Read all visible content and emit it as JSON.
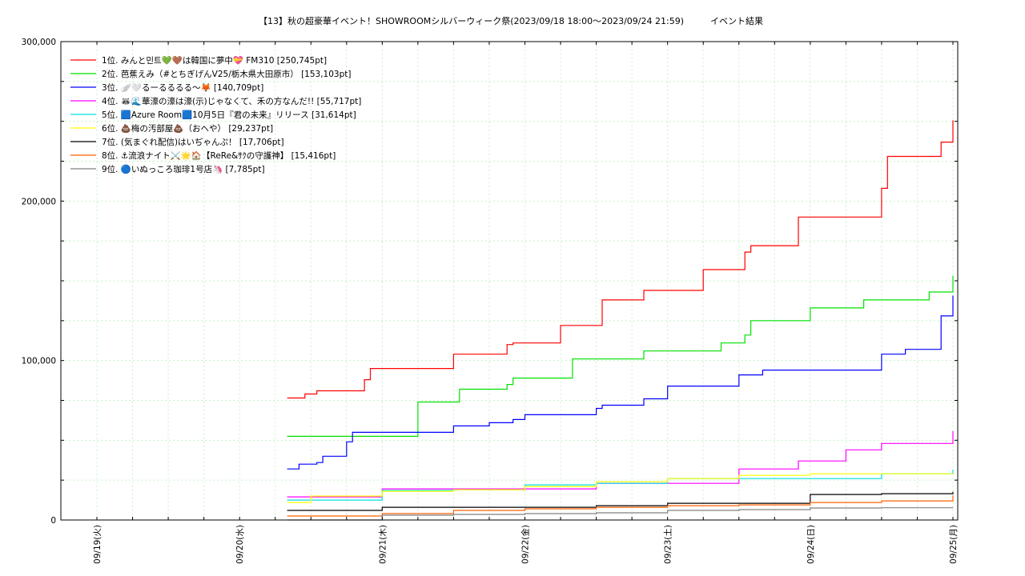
{
  "chart_data": {
    "type": "line",
    "title": "【13】秋の超豪華イベント！SHOWROOMシルバーウィーク祭(2023/09/18 18:00〜2023/09/24 21:59)　　　イベント結果",
    "xlabel": "",
    "ylabel": "",
    "ylim": [
      0,
      300000
    ],
    "y_ticks": [
      0,
      100000,
      200000,
      300000
    ],
    "y_tick_labels": [
      "0",
      "100,000",
      "200,000",
      "300,000"
    ],
    "xlim": [
      "2023-09-19 00:00",
      "2023-09-25 00:00"
    ],
    "x_ticks": [
      "2023-09-19",
      "2023-09-20",
      "2023-09-21",
      "2023-09-22",
      "2023-09-23",
      "2023-09-24",
      "2023-09-25"
    ],
    "x_tick_labels": [
      "09/19(火)",
      "09/20(水)",
      "09/21(木)",
      "09/22(金)",
      "09/23(土)",
      "09/24(日)",
      "09/25(月)"
    ],
    "grid": true,
    "legend_position": "top-left",
    "series": [
      {
        "name": "1位. みんと민트💚🤎は韓国に夢中💝 FM310 [250,745pt]",
        "color": "#ff0000",
        "x": [
          "2023-09-20 08:00",
          "2023-09-20 10:00",
          "2023-09-20 11:00",
          "2023-09-20 13:00",
          "2023-09-20 21:00",
          "2023-09-20 22:00",
          "2023-09-21 12:00",
          "2023-09-21 13:00",
          "2023-09-21 21:00",
          "2023-09-21 22:00",
          "2023-09-22 06:00",
          "2023-09-22 12:00",
          "2023-09-22 13:00",
          "2023-09-22 20:00",
          "2023-09-22 21:00",
          "2023-09-23 06:00",
          "2023-09-23 13:00",
          "2023-09-23 14:00",
          "2023-09-23 22:00",
          "2023-09-23 23:00",
          "2023-09-24 12:00",
          "2023-09-24 13:00",
          "2023-09-24 14:00",
          "2023-09-24 22:00",
          "2023-09-25 00:00"
        ],
        "y": [
          76500,
          76500,
          79000,
          81000,
          88000,
          95000,
          104000,
          104000,
          110000,
          111000,
          122000,
          122000,
          138000,
          144000,
          144000,
          157000,
          168000,
          172000,
          190000,
          190000,
          208000,
          228000,
          228000,
          237000,
          250745
        ]
      },
      {
        "name": "2位. 芭蕉えみ（#とちぎげんV25/栃木県大田原市） [153,103pt]",
        "color": "#00e000",
        "x": [
          "2023-09-20 08:00",
          "2023-09-20 20:00",
          "2023-09-21 00:00",
          "2023-09-21 06:00",
          "2023-09-21 08:00",
          "2023-09-21 12:00",
          "2023-09-21 13:00",
          "2023-09-21 21:00",
          "2023-09-21 22:00",
          "2023-09-22 07:00",
          "2023-09-22 08:00",
          "2023-09-22 18:00",
          "2023-09-22 20:00",
          "2023-09-23 09:00",
          "2023-09-23 10:00",
          "2023-09-23 13:00",
          "2023-09-23 14:00",
          "2023-09-23 22:00",
          "2023-09-24 00:00",
          "2023-09-24 08:00",
          "2023-09-24 09:00",
          "2023-09-24 20:00",
          "2023-09-24 21:00",
          "2023-09-25 00:00"
        ],
        "y": [
          52500,
          52500,
          52500,
          74000,
          74000,
          74000,
          82000,
          85000,
          89000,
          89000,
          101000,
          101000,
          106000,
          111000,
          111000,
          116000,
          125000,
          125000,
          133000,
          133000,
          138000,
          143000,
          143000,
          153103
        ]
      },
      {
        "name": "3位. 🪽🤍るーるるるる〜🦊 [140,709pt]",
        "color": "#0000ff",
        "x": [
          "2023-09-20 08:00",
          "2023-09-20 10:00",
          "2023-09-20 13:00",
          "2023-09-20 14:00",
          "2023-09-20 18:00",
          "2023-09-20 19:00",
          "2023-09-21 12:00",
          "2023-09-21 13:00",
          "2023-09-21 18:00",
          "2023-09-21 22:00",
          "2023-09-22 00:00",
          "2023-09-22 12:00",
          "2023-09-22 13:00",
          "2023-09-22 16:00",
          "2023-09-22 20:00",
          "2023-09-23 00:00",
          "2023-09-23 12:00",
          "2023-09-23 13:00",
          "2023-09-23 16:00",
          "2023-09-24 00:00",
          "2023-09-24 12:00",
          "2023-09-24 16:00",
          "2023-09-24 20:00",
          "2023-09-24 22:00",
          "2023-09-25 00:00"
        ],
        "y": [
          32000,
          35000,
          36000,
          40000,
          49000,
          55000,
          59000,
          59000,
          61000,
          63000,
          66000,
          70000,
          72000,
          72000,
          76000,
          84000,
          91000,
          91000,
          94000,
          94000,
          104000,
          107000,
          107000,
          128000,
          140709
        ]
      },
      {
        "name": "4位. 🦝🌊華濠の濠は濠(示)じゃなくて、禾の方なんだ!! [55,717pt]",
        "color": "#ff00ff",
        "x": [
          "2023-09-20 08:00",
          "2023-09-20 12:00",
          "2023-09-21 00:00",
          "2023-09-21 12:00",
          "2023-09-22 00:00",
          "2023-09-22 12:00",
          "2023-09-23 00:00",
          "2023-09-23 12:00",
          "2023-09-23 18:00",
          "2023-09-23 22:00",
          "2023-09-24 00:00",
          "2023-09-24 06:00",
          "2023-09-24 12:00",
          "2023-09-24 22:00",
          "2023-09-25 00:00"
        ],
        "y": [
          14500,
          14500,
          19500,
          19500,
          19500,
          23000,
          23000,
          32000,
          32000,
          37000,
          37000,
          44000,
          48000,
          48000,
          55717
        ]
      },
      {
        "name": "5位. 🟦Azure Room🟦10月5日『君の未来』リリース [31,614pt]",
        "color": "#00e0e0",
        "x": [
          "2023-09-20 08:00",
          "2023-09-20 12:00",
          "2023-09-21 00:00",
          "2023-09-21 12:00",
          "2023-09-22 00:00",
          "2023-09-22 12:00",
          "2023-09-23 00:00",
          "2023-09-23 12:00",
          "2023-09-24 00:00",
          "2023-09-24 12:00",
          "2023-09-24 22:00",
          "2023-09-25 00:00"
        ],
        "y": [
          12500,
          12500,
          18500,
          19000,
          22000,
          23000,
          26000,
          26000,
          26000,
          29000,
          29000,
          31614
        ]
      },
      {
        "name": "6位. 💩梅の汚部屋💩（おへや） [29,237pt]",
        "color": "#ffff00",
        "x": [
          "2023-09-20 08:00",
          "2023-09-20 12:00",
          "2023-09-21 00:00",
          "2023-09-21 12:00",
          "2023-09-22 00:00",
          "2023-09-22 12:00",
          "2023-09-23 00:00",
          "2023-09-23 12:00",
          "2023-09-24 00:00",
          "2023-09-24 12:00",
          "2023-09-25 00:00"
        ],
        "y": [
          11000,
          15000,
          18000,
          19000,
          21000,
          24000,
          26000,
          28000,
          29000,
          29000,
          29237
        ]
      },
      {
        "name": "7位. (気まぐれ配信)はいぢゃんぷ！ [17,706pt]",
        "color": "#000000",
        "x": [
          "2023-09-20 08:00",
          "2023-09-20 22:00",
          "2023-09-21 00:00",
          "2023-09-22 00:00",
          "2023-09-22 12:00",
          "2023-09-23 00:00",
          "2023-09-23 12:00",
          "2023-09-24 00:00",
          "2023-09-24 12:00",
          "2023-09-25 00:00"
        ],
        "y": [
          6000,
          6000,
          8000,
          8000,
          9000,
          10500,
          10500,
          16000,
          16500,
          17706
        ]
      },
      {
        "name": "8位. ⚓流浪ナイト⚔️🌟🏠【ReRe&ｻｸの守護神】 [15,416pt]",
        "color": "#ff6000",
        "x": [
          "2023-09-20 08:00",
          "2023-09-21 00:00",
          "2023-09-21 12:00",
          "2023-09-22 00:00",
          "2023-09-22 12:00",
          "2023-09-23 00:00",
          "2023-09-23 12:00",
          "2023-09-24 00:00",
          "2023-09-24 12:00",
          "2023-09-25 00:00"
        ],
        "y": [
          2500,
          4000,
          6000,
          7000,
          8000,
          9000,
          9500,
          11000,
          12000,
          15416
        ]
      },
      {
        "name": "9位. 🔵いぬっころ珈琲1号店🦄 [7,785pt]",
        "color": "#808080",
        "x": [
          "2023-09-20 08:00",
          "2023-09-21 00:00",
          "2023-09-21 12:00",
          "2023-09-22 00:00",
          "2023-09-22 12:00",
          "2023-09-23 00:00",
          "2023-09-23 12:00",
          "2023-09-24 00:00",
          "2023-09-24 12:00",
          "2023-09-25 00:00"
        ],
        "y": [
          0,
          3000,
          3500,
          4000,
          4500,
          6000,
          6500,
          7500,
          7700,
          7785
        ]
      }
    ]
  }
}
